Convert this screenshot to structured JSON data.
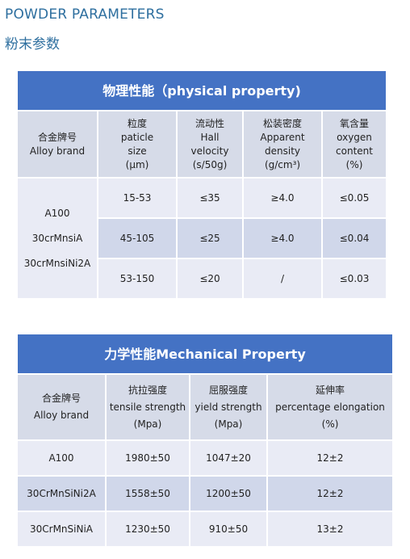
{
  "header": {
    "title_en": "POWDER PARAMETERS",
    "title_cn": "粉末参数"
  },
  "physical": {
    "title": "物理性能（physical property)",
    "headers": [
      [
        "合金牌号",
        "Alloy brand"
      ],
      [
        "粒度",
        "paticle",
        "size",
        "(μm)"
      ],
      [
        "流动性",
        "Hall",
        "velocity",
        "(s/50g)"
      ],
      [
        "松装密度",
        "Apparent",
        "density",
        "(g/cm³)"
      ],
      [
        "氧含量",
        "oxygen",
        "content",
        "(%)"
      ]
    ],
    "brands": [
      "A100",
      "30crMnsiA",
      "30crMnsiNi2A"
    ],
    "rows": [
      [
        "15-53",
        "≤35",
        "≥4.0",
        "≤0.05"
      ],
      [
        "45-105",
        "≤25",
        "≥4.0",
        "≤0.04"
      ],
      [
        "53-150",
        "≤20",
        "/",
        "≤0.03"
      ]
    ]
  },
  "mechanical": {
    "title": "力学性能Mechanical Property",
    "headers": [
      [
        "合金牌号",
        "Alloy brand"
      ],
      [
        "抗拉强度",
        "tensile strength",
        "(Mpa)"
      ],
      [
        "屈服强度",
        "yield strength",
        "(Mpa)"
      ],
      [
        "延伸率",
        "percentage elongation",
        "(%)"
      ]
    ],
    "rows": [
      [
        "A100",
        "1980±50",
        "1047±20",
        "12±2"
      ],
      [
        "30CrMnSiNi2A",
        "1558±50",
        "1200±50",
        "12±2"
      ],
      [
        "30CrMnSiNiA",
        "1230±50",
        "910±50",
        "13±2"
      ]
    ]
  }
}
